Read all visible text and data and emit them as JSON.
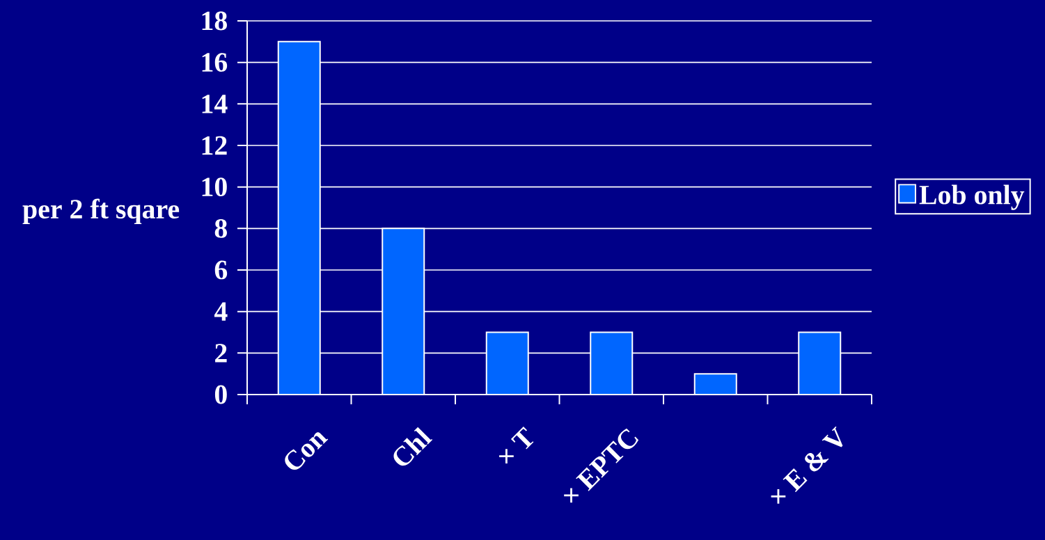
{
  "chart_data": {
    "type": "bar",
    "ylabel": "per  2 ft sqare",
    "categories": [
      "Con",
      "Chl",
      "× T",
      "× EPTC",
      null,
      "× E & V"
    ],
    "series": [
      {
        "name": "Lob only",
        "color": "#0066ff",
        "values": [
          17,
          8,
          3,
          3,
          1,
          3
        ]
      }
    ],
    "ylim": [
      0,
      18
    ],
    "yticks": [
      0,
      2,
      4,
      6,
      8,
      10,
      12,
      14,
      16,
      18
    ],
    "grid": "y",
    "legend": "right"
  }
}
